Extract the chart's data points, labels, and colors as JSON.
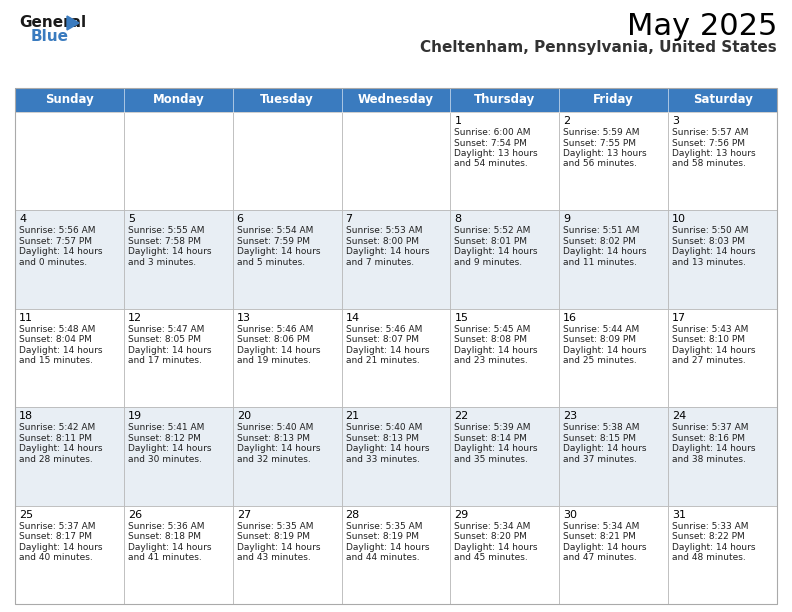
{
  "title": "May 2025",
  "subtitle": "Cheltenham, Pennsylvania, United States",
  "header_color": "#3a7bbf",
  "header_text_color": "#ffffff",
  "cell_bg_even": "#ffffff",
  "cell_bg_odd": "#e8eef4",
  "day_headers": [
    "Sunday",
    "Monday",
    "Tuesday",
    "Wednesday",
    "Thursday",
    "Friday",
    "Saturday"
  ],
  "title_fontsize": 22,
  "subtitle_fontsize": 11,
  "header_fontsize": 8.5,
  "cell_fontsize": 6.5,
  "day_num_fontsize": 8,
  "logo_general_color": "#1a1a1a",
  "logo_blue_color": "#3a7bbf",
  "grid_line_color": "#bbbbbb",
  "calendar": [
    [
      null,
      null,
      null,
      null,
      {
        "day": 1,
        "sunrise": "6:00 AM",
        "sunset": "7:54 PM",
        "daylight": "13 hours and 54 minutes"
      },
      {
        "day": 2,
        "sunrise": "5:59 AM",
        "sunset": "7:55 PM",
        "daylight": "13 hours and 56 minutes"
      },
      {
        "day": 3,
        "sunrise": "5:57 AM",
        "sunset": "7:56 PM",
        "daylight": "13 hours and 58 minutes"
      }
    ],
    [
      {
        "day": 4,
        "sunrise": "5:56 AM",
        "sunset": "7:57 PM",
        "daylight": "14 hours and 0 minutes"
      },
      {
        "day": 5,
        "sunrise": "5:55 AM",
        "sunset": "7:58 PM",
        "daylight": "14 hours and 3 minutes"
      },
      {
        "day": 6,
        "sunrise": "5:54 AM",
        "sunset": "7:59 PM",
        "daylight": "14 hours and 5 minutes"
      },
      {
        "day": 7,
        "sunrise": "5:53 AM",
        "sunset": "8:00 PM",
        "daylight": "14 hours and 7 minutes"
      },
      {
        "day": 8,
        "sunrise": "5:52 AM",
        "sunset": "8:01 PM",
        "daylight": "14 hours and 9 minutes"
      },
      {
        "day": 9,
        "sunrise": "5:51 AM",
        "sunset": "8:02 PM",
        "daylight": "14 hours and 11 minutes"
      },
      {
        "day": 10,
        "sunrise": "5:50 AM",
        "sunset": "8:03 PM",
        "daylight": "14 hours and 13 minutes"
      }
    ],
    [
      {
        "day": 11,
        "sunrise": "5:48 AM",
        "sunset": "8:04 PM",
        "daylight": "14 hours and 15 minutes"
      },
      {
        "day": 12,
        "sunrise": "5:47 AM",
        "sunset": "8:05 PM",
        "daylight": "14 hours and 17 minutes"
      },
      {
        "day": 13,
        "sunrise": "5:46 AM",
        "sunset": "8:06 PM",
        "daylight": "14 hours and 19 minutes"
      },
      {
        "day": 14,
        "sunrise": "5:46 AM",
        "sunset": "8:07 PM",
        "daylight": "14 hours and 21 minutes"
      },
      {
        "day": 15,
        "sunrise": "5:45 AM",
        "sunset": "8:08 PM",
        "daylight": "14 hours and 23 minutes"
      },
      {
        "day": 16,
        "sunrise": "5:44 AM",
        "sunset": "8:09 PM",
        "daylight": "14 hours and 25 minutes"
      },
      {
        "day": 17,
        "sunrise": "5:43 AM",
        "sunset": "8:10 PM",
        "daylight": "14 hours and 27 minutes"
      }
    ],
    [
      {
        "day": 18,
        "sunrise": "5:42 AM",
        "sunset": "8:11 PM",
        "daylight": "14 hours and 28 minutes"
      },
      {
        "day": 19,
        "sunrise": "5:41 AM",
        "sunset": "8:12 PM",
        "daylight": "14 hours and 30 minutes"
      },
      {
        "day": 20,
        "sunrise": "5:40 AM",
        "sunset": "8:13 PM",
        "daylight": "14 hours and 32 minutes"
      },
      {
        "day": 21,
        "sunrise": "5:40 AM",
        "sunset": "8:13 PM",
        "daylight": "14 hours and 33 minutes"
      },
      {
        "day": 22,
        "sunrise": "5:39 AM",
        "sunset": "8:14 PM",
        "daylight": "14 hours and 35 minutes"
      },
      {
        "day": 23,
        "sunrise": "5:38 AM",
        "sunset": "8:15 PM",
        "daylight": "14 hours and 37 minutes"
      },
      {
        "day": 24,
        "sunrise": "5:37 AM",
        "sunset": "8:16 PM",
        "daylight": "14 hours and 38 minutes"
      }
    ],
    [
      {
        "day": 25,
        "sunrise": "5:37 AM",
        "sunset": "8:17 PM",
        "daylight": "14 hours and 40 minutes"
      },
      {
        "day": 26,
        "sunrise": "5:36 AM",
        "sunset": "8:18 PM",
        "daylight": "14 hours and 41 minutes"
      },
      {
        "day": 27,
        "sunrise": "5:35 AM",
        "sunset": "8:19 PM",
        "daylight": "14 hours and 43 minutes"
      },
      {
        "day": 28,
        "sunrise": "5:35 AM",
        "sunset": "8:19 PM",
        "daylight": "14 hours and 44 minutes"
      },
      {
        "day": 29,
        "sunrise": "5:34 AM",
        "sunset": "8:20 PM",
        "daylight": "14 hours and 45 minutes"
      },
      {
        "day": 30,
        "sunrise": "5:34 AM",
        "sunset": "8:21 PM",
        "daylight": "14 hours and 47 minutes"
      },
      {
        "day": 31,
        "sunrise": "5:33 AM",
        "sunset": "8:22 PM",
        "daylight": "14 hours and 48 minutes"
      }
    ]
  ]
}
